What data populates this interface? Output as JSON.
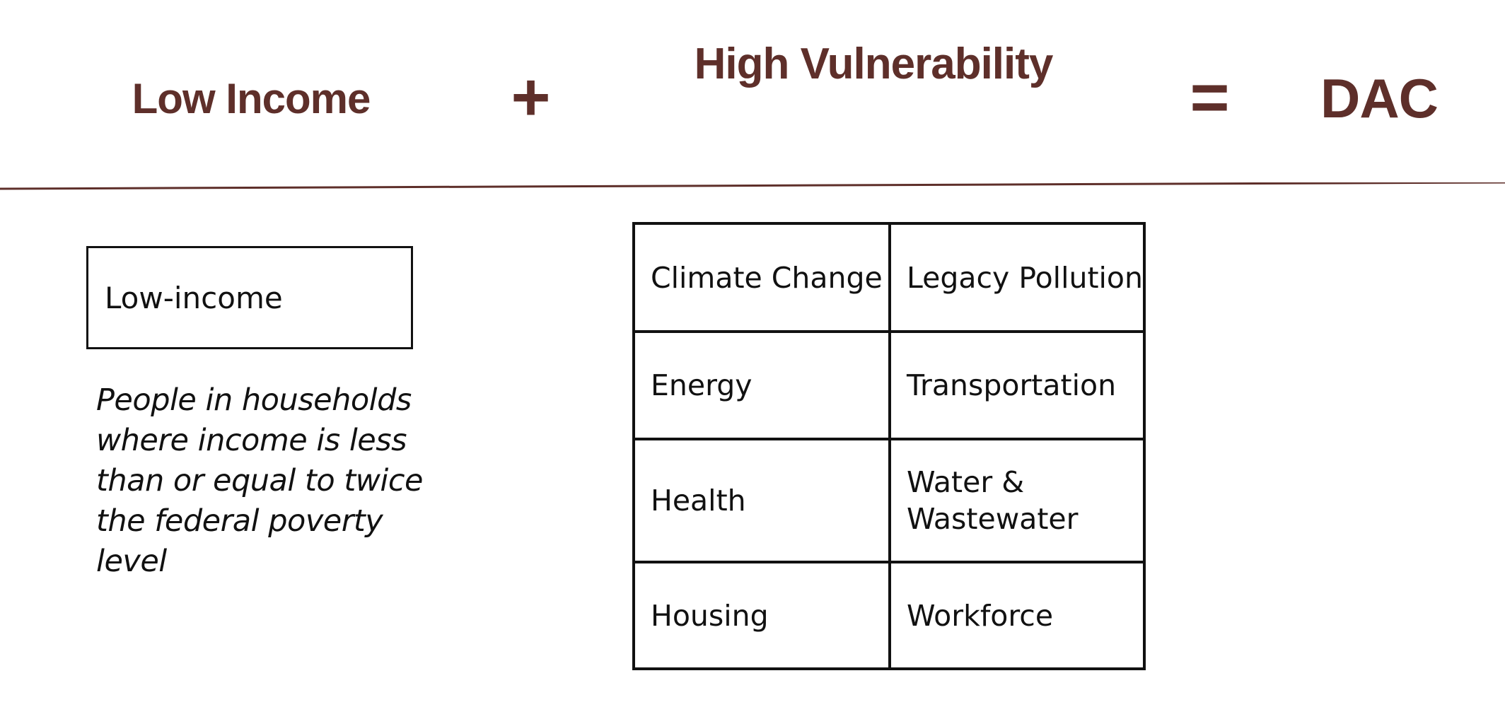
{
  "equation": {
    "term_1": "Low Income",
    "operator_plus": "+",
    "term_2": "High Vulnerability",
    "operator_equals": "=",
    "result": "DAC"
  },
  "low_income": {
    "box_label": "Low-income",
    "description": "People in households where income is less than or equal to twice the federal poverty level"
  },
  "vulnerability_grid": {
    "rows": [
      [
        "Climate Change",
        "Legacy Pollution"
      ],
      [
        "Energy",
        "Transportation"
      ],
      [
        "Health",
        "Water & Wastewater"
      ],
      [
        "Housing",
        "Workforce"
      ]
    ]
  },
  "colors": {
    "heading": "#5e2f2a",
    "divider": "#5e2f2a",
    "body_text": "#111111"
  }
}
